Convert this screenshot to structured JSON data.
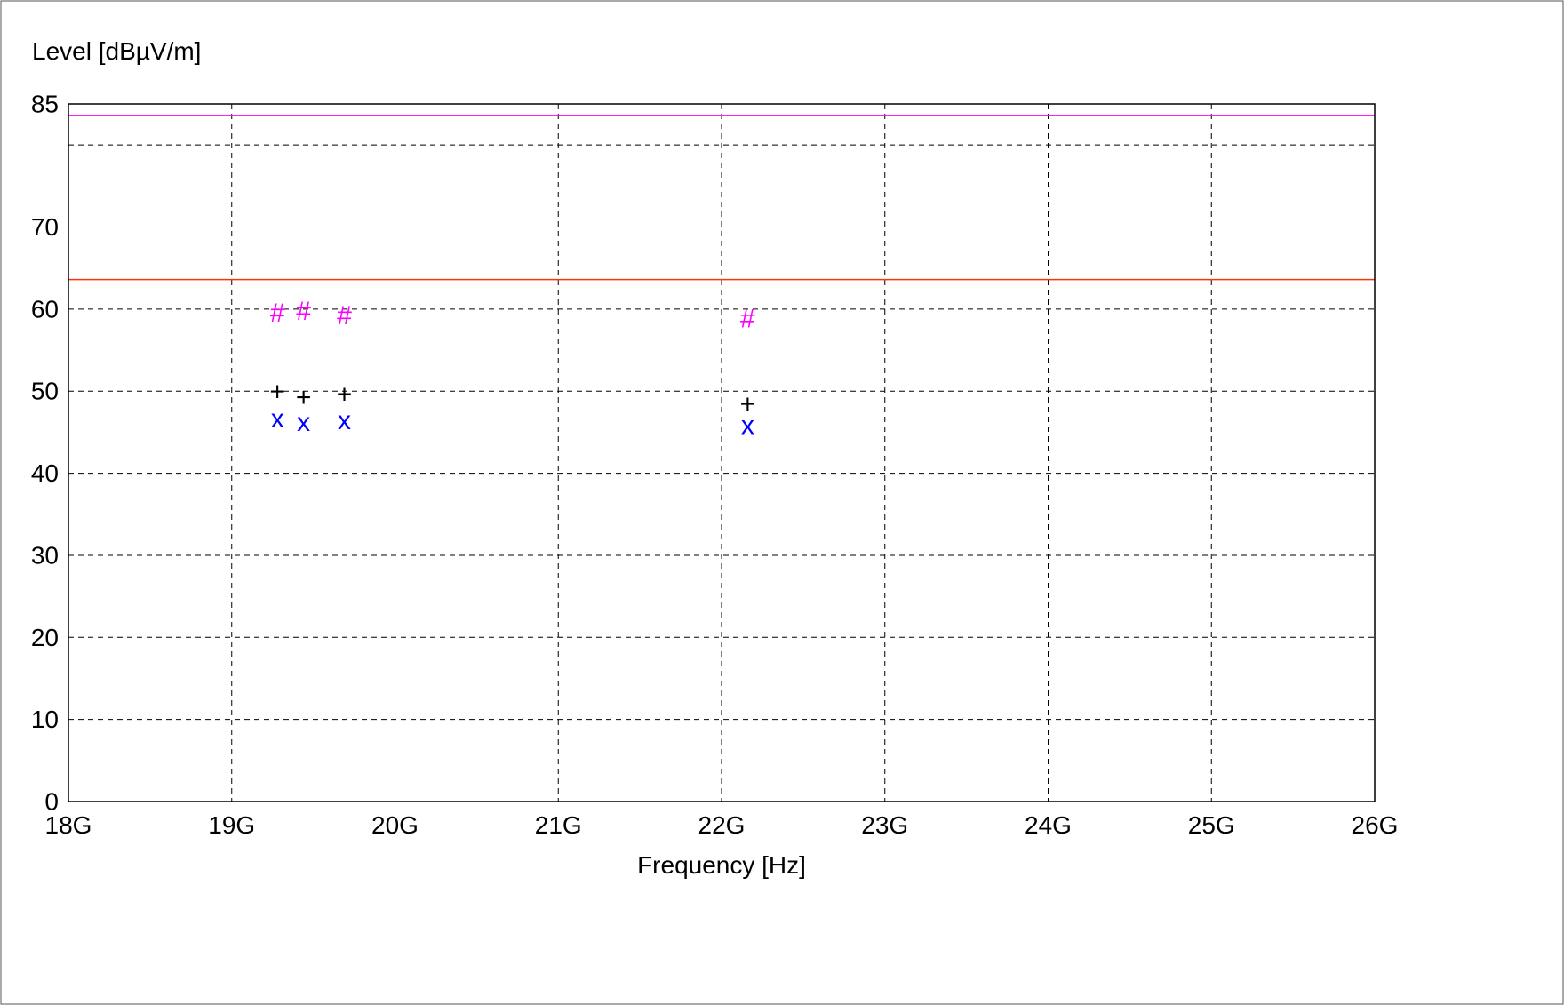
{
  "chart_data": {
    "type": "scatter",
    "xlabel": "Frequency [Hz]",
    "ylabel": "Level [dBµV/m]",
    "xlim": [
      18,
      26
    ],
    "ylim": [
      0,
      85
    ],
    "x_unit": "GHz",
    "grid": true,
    "x_ticks": [
      {
        "value": 18,
        "label": "18G"
      },
      {
        "value": 19,
        "label": "19G"
      },
      {
        "value": 20,
        "label": "20G"
      },
      {
        "value": 21,
        "label": "21G"
      },
      {
        "value": 22,
        "label": "22G"
      },
      {
        "value": 23,
        "label": "23G"
      },
      {
        "value": 24,
        "label": "24G"
      },
      {
        "value": 25,
        "label": "25G"
      },
      {
        "value": 26,
        "label": "26G"
      }
    ],
    "y_ticks": [
      {
        "value": 0,
        "label": "0"
      },
      {
        "value": 10,
        "label": "10"
      },
      {
        "value": 20,
        "label": "20"
      },
      {
        "value": 30,
        "label": "30"
      },
      {
        "value": 40,
        "label": "40"
      },
      {
        "value": 50,
        "label": "50"
      },
      {
        "value": 60,
        "label": "60"
      },
      {
        "value": 70,
        "label": "70"
      },
      {
        "value": 85,
        "label": "85"
      }
    ],
    "y_gridlines": [
      10,
      20,
      30,
      40,
      50,
      60,
      70,
      80
    ],
    "limit_lines": [
      {
        "y": 83.6,
        "color": "#ff00ff"
      },
      {
        "y": 63.6,
        "color": "#ff3300"
      }
    ],
    "series": [
      {
        "marker": "#",
        "color": "#ff00ff",
        "points": [
          {
            "x": 19.28,
            "y": 59.5
          },
          {
            "x": 19.44,
            "y": 59.7
          },
          {
            "x": 19.69,
            "y": 59.2
          },
          {
            "x": 22.16,
            "y": 58.8
          }
        ]
      },
      {
        "marker": "+",
        "color": "#000000",
        "points": [
          {
            "x": 19.28,
            "y": 49.9
          },
          {
            "x": 19.44,
            "y": 49.2
          },
          {
            "x": 19.69,
            "y": 49.6
          },
          {
            "x": 22.16,
            "y": 48.4
          }
        ]
      },
      {
        "marker": "x",
        "color": "#0000ff",
        "points": [
          {
            "x": 19.28,
            "y": 46.6
          },
          {
            "x": 19.44,
            "y": 46.2
          },
          {
            "x": 19.69,
            "y": 46.4
          },
          {
            "x": 22.16,
            "y": 45.8
          }
        ]
      }
    ]
  }
}
